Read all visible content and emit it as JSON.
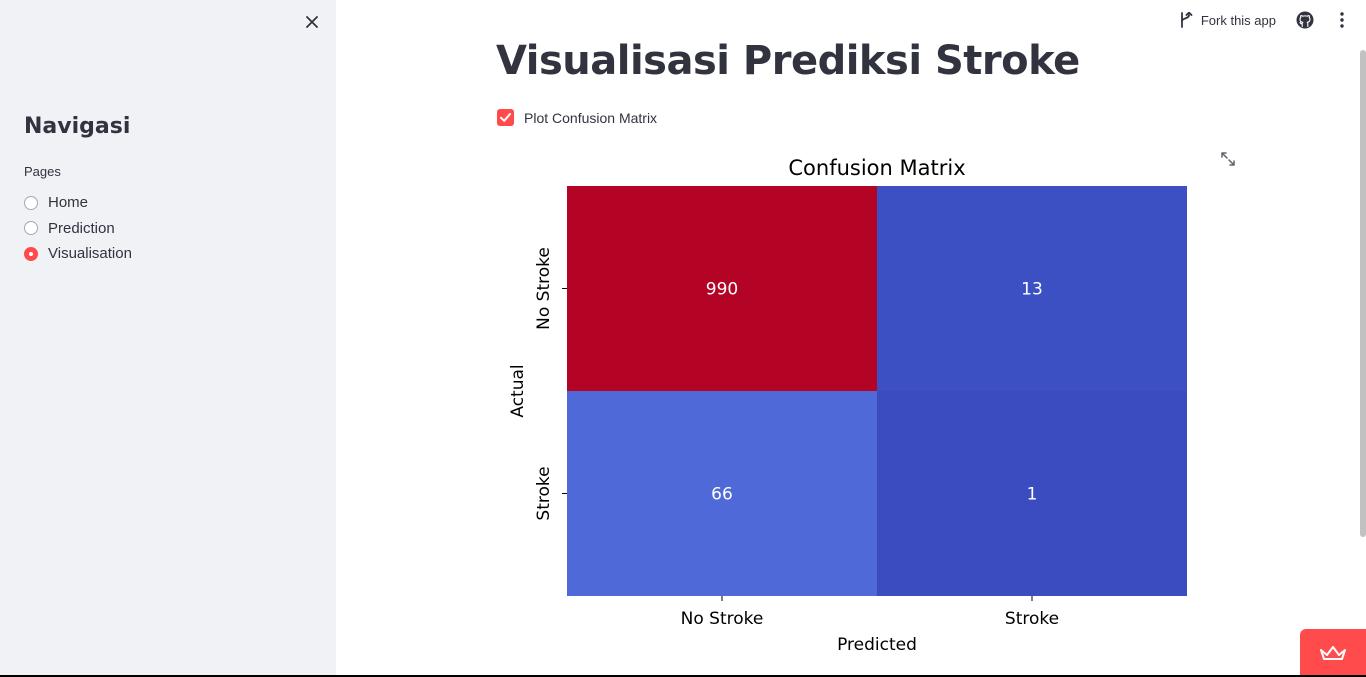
{
  "sidebar": {
    "title": "Navigasi",
    "pages_label": "Pages",
    "options": [
      {
        "label": "Home",
        "selected": false
      },
      {
        "label": "Prediction",
        "selected": false
      },
      {
        "label": "Visualisation",
        "selected": true
      }
    ]
  },
  "header": {
    "fork_label": "Fork this app"
  },
  "main": {
    "title": "Visualisasi Prediksi Stroke",
    "checkbox_label": "Plot Confusion Matrix",
    "checkbox_checked": true
  },
  "colors": {
    "accent": "#ff4b4b",
    "sidebar_bg": "#f0f2f6"
  },
  "chart_data": {
    "type": "heatmap",
    "title": "Confusion Matrix",
    "xlabel": "Predicted",
    "ylabel": "Actual",
    "x_categories": [
      "No Stroke",
      "Stroke"
    ],
    "y_categories": [
      "No Stroke",
      "Stroke"
    ],
    "values": [
      [
        990,
        13
      ],
      [
        66,
        1
      ]
    ],
    "colormap": "coolwarm",
    "cell_colors": [
      [
        "#b40426",
        "#3d50c3"
      ],
      [
        "#4f69d9",
        "#3b4cc0"
      ]
    ],
    "annotation_color": "#ffffff",
    "colorbar": false
  }
}
